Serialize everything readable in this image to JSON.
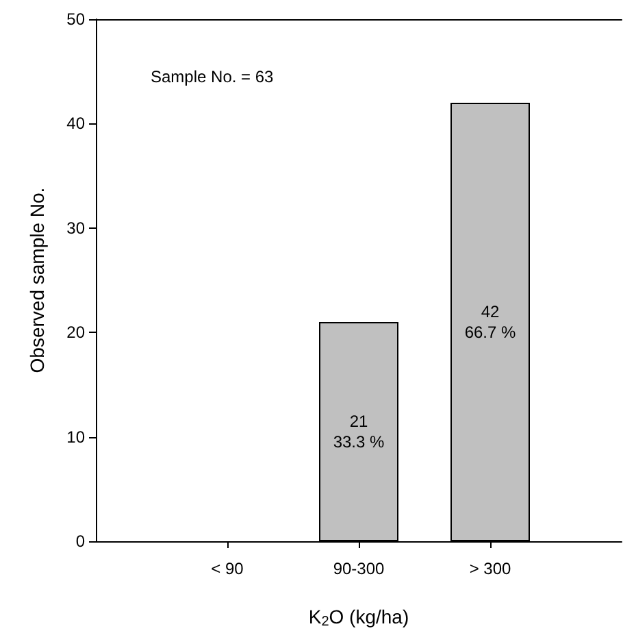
{
  "chart_data": {
    "type": "bar",
    "xlabel": "K$_{2}$O (kg/ha)",
    "ylabel": "Observed sample No.",
    "categories": [
      "< 90",
      "90-300",
      "> 300"
    ],
    "values": [
      0,
      21,
      42
    ],
    "value_labels": [
      null,
      "21\n33.3 %",
      "42\n66.7 %"
    ],
    "color": "#c0c0c0",
    "ylim": [
      0,
      50
    ],
    "yticks": [
      0,
      10,
      20,
      30,
      40,
      50
    ],
    "grid": false,
    "annotations": [
      "Sample No. = 63"
    ]
  }
}
